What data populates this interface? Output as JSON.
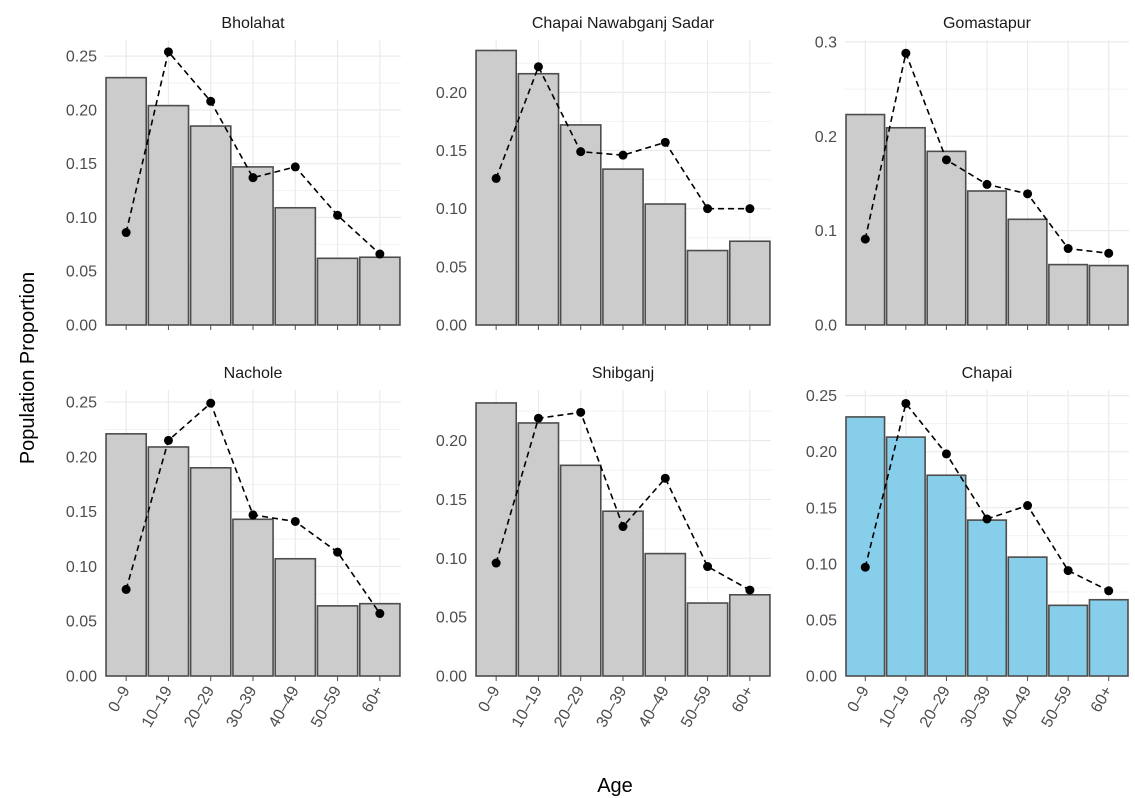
{
  "chart_data": {
    "type": "bar",
    "xlabel": "Age",
    "ylabel": "Population Proportion",
    "categories": [
      "0–9",
      "10–19",
      "20–29",
      "30–39",
      "40–49",
      "50–59",
      "60+"
    ],
    "grid": true,
    "colors": {
      "bar_default": "#cccccc",
      "bar_highlight": "#87ceeb",
      "bar_outline": "#4d4d4d",
      "line": "#000000"
    },
    "panels": [
      {
        "title": "Bholahat",
        "ylim": [
          0,
          0.265
        ],
        "yticks": [
          0,
          0.05,
          0.1,
          0.15,
          0.2,
          0.25
        ],
        "ytick_labels": [
          "0.00",
          "0.05",
          "0.10",
          "0.15",
          "0.20",
          "0.25"
        ],
        "highlight": false,
        "series": [
          {
            "type": "bar",
            "values": [
              0.23,
              0.204,
              0.185,
              0.147,
              0.109,
              0.062,
              0.063
            ]
          },
          {
            "type": "line",
            "values": [
              0.086,
              0.254,
              0.208,
              0.137,
              0.147,
              0.102,
              0.066
            ]
          }
        ]
      },
      {
        "title": "Chapai Nawabganj Sadar",
        "ylim": [
          0,
          0.245
        ],
        "yticks": [
          0,
          0.05,
          0.1,
          0.15,
          0.2
        ],
        "ytick_labels": [
          "0.00",
          "0.05",
          "0.10",
          "0.15",
          "0.20"
        ],
        "highlight": false,
        "series": [
          {
            "type": "bar",
            "values": [
              0.236,
              0.216,
              0.172,
              0.134,
              0.104,
              0.064,
              0.072
            ]
          },
          {
            "type": "line",
            "values": [
              0.126,
              0.222,
              0.149,
              0.146,
              0.157,
              0.1,
              0.1
            ]
          }
        ]
      },
      {
        "title": "Gomastapur",
        "ylim": [
          0,
          0.302
        ],
        "yticks": [
          0,
          0.1,
          0.2,
          0.3
        ],
        "ytick_labels": [
          "0.0",
          "0.1",
          "0.2",
          "0.3"
        ],
        "highlight": false,
        "series": [
          {
            "type": "bar",
            "values": [
              0.223,
              0.209,
              0.184,
              0.142,
              0.112,
              0.064,
              0.063
            ]
          },
          {
            "type": "line",
            "values": [
              0.091,
              0.288,
              0.175,
              0.149,
              0.139,
              0.081,
              0.076
            ]
          }
        ]
      },
      {
        "title": "Nachole",
        "ylim": [
          0,
          0.261
        ],
        "yticks": [
          0,
          0.05,
          0.1,
          0.15,
          0.2,
          0.25
        ],
        "ytick_labels": [
          "0.00",
          "0.05",
          "0.10",
          "0.15",
          "0.20",
          "0.25"
        ],
        "highlight": false,
        "series": [
          {
            "type": "bar",
            "values": [
              0.221,
              0.209,
              0.19,
              0.143,
              0.107,
              0.064,
              0.066
            ]
          },
          {
            "type": "line",
            "values": [
              0.079,
              0.215,
              0.249,
              0.147,
              0.141,
              0.113,
              0.057
            ]
          }
        ]
      },
      {
        "title": "Shibganj",
        "ylim": [
          0,
          0.243
        ],
        "yticks": [
          0,
          0.05,
          0.1,
          0.15,
          0.2
        ],
        "ytick_labels": [
          "0.00",
          "0.05",
          "0.10",
          "0.15",
          "0.20"
        ],
        "highlight": false,
        "series": [
          {
            "type": "bar",
            "values": [
              0.232,
              0.215,
              0.179,
              0.14,
              0.104,
              0.062,
              0.069
            ]
          },
          {
            "type": "line",
            "values": [
              0.096,
              0.219,
              0.224,
              0.127,
              0.168,
              0.093,
              0.073
            ]
          }
        ]
      },
      {
        "title": "Chapai",
        "ylim": [
          0,
          0.255
        ],
        "yticks": [
          0,
          0.05,
          0.1,
          0.15,
          0.2,
          0.25
        ],
        "ytick_labels": [
          "0.00",
          "0.05",
          "0.10",
          "0.15",
          "0.20",
          "0.25"
        ],
        "highlight": true,
        "series": [
          {
            "type": "bar",
            "values": [
              0.231,
              0.213,
              0.179,
              0.139,
              0.106,
              0.063,
              0.068
            ]
          },
          {
            "type": "line",
            "values": [
              0.097,
              0.243,
              0.198,
              0.14,
              0.152,
              0.094,
              0.076
            ]
          }
        ]
      }
    ]
  }
}
